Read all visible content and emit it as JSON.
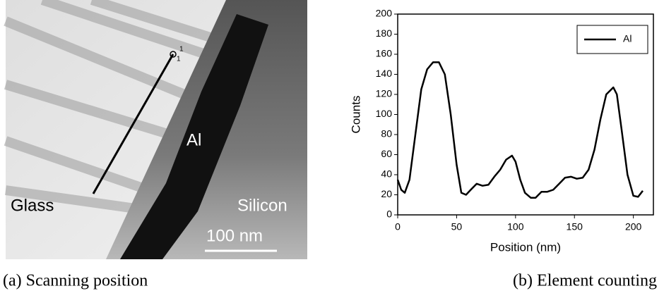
{
  "image": {
    "labels": [
      "Al",
      "Glass",
      "Silicon"
    ],
    "scale_bar": "100 nm",
    "marker_labels": [
      "1",
      "1"
    ]
  },
  "captions": [
    "(a) Scanning position",
    "(b) Element counting"
  ],
  "chart_data": {
    "type": "line",
    "x_label": "Position (nm)",
    "y_label": "Counts",
    "x": [
      0,
      3,
      6,
      10,
      15,
      20,
      25,
      30,
      35,
      40,
      45,
      50,
      54,
      58,
      62,
      67,
      72,
      77,
      82,
      87,
      92,
      97,
      100,
      104,
      108,
      113,
      117,
      122,
      127,
      132,
      137,
      142,
      147,
      152,
      157,
      162,
      167,
      172,
      177,
      183,
      186,
      190,
      195,
      200,
      204,
      208
    ],
    "series": [
      {
        "name": "Al",
        "color": "#000000",
        "values": [
          35,
          25,
          22,
          35,
          80,
          125,
          145,
          152,
          152,
          140,
          100,
          50,
          22,
          20,
          25,
          31,
          29,
          30,
          38,
          45,
          55,
          59,
          53,
          35,
          22,
          17,
          17,
          23,
          23,
          25,
          31,
          37,
          38,
          36,
          37,
          45,
          65,
          95,
          120,
          127,
          120,
          85,
          40,
          19,
          18,
          24
        ]
      }
    ],
    "xlim": [
      0,
      217
    ],
    "ylim": [
      0,
      200
    ],
    "xticks": [
      0,
      50,
      100,
      150,
      200
    ],
    "yticks": [
      0,
      20,
      40,
      60,
      80,
      100,
      120,
      140,
      160,
      180,
      200
    ],
    "legend": "upper right"
  }
}
